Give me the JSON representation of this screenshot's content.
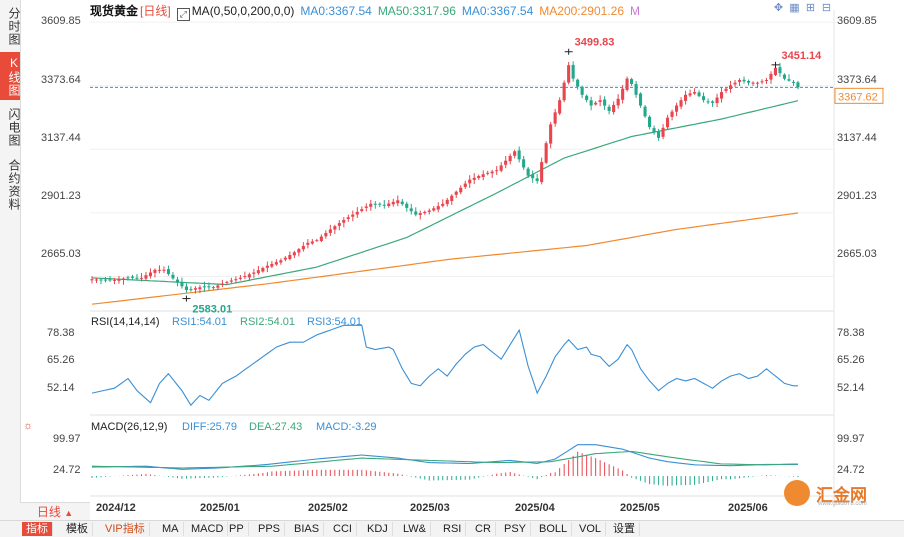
{
  "side_tabs": [
    {
      "label": "分时图",
      "active": false
    },
    {
      "label": "K线图",
      "active": true
    },
    {
      "label": "闪电图",
      "active": false
    },
    {
      "label": "合约资料",
      "active": false
    }
  ],
  "header": {
    "title": "现货黄金",
    "period": "[日线]",
    "ma_label": "MA(0,50,0,200,0,0)",
    "ma0_a": "MA0:3367.54",
    "ma50": "MA50:3317.96",
    "ma0_b": "MA0:3367.54",
    "ma200": "MA200:2901.26",
    "m": "M"
  },
  "colors": {
    "up": "#e8454e",
    "down": "#22a88a",
    "ma50": "#3aa87a",
    "ma200": "#f08a30",
    "rsi": "#3a8fd6",
    "diff": "#3a8fd6",
    "dea": "#3aa87a",
    "accent": "#e84b3a"
  },
  "price_axis": [
    "3609.85",
    "3373.64",
    "3137.44",
    "2901.23",
    "2665.03"
  ],
  "current_price": "3367.62",
  "annotations": {
    "high": "3499.83",
    "recent_high": "3451.14",
    "low": "2583.01"
  },
  "rsi": {
    "header": "RSI(14,14,14)",
    "rsi1": "RSI1:54.01",
    "rsi2": "RSI2:54.01",
    "rsi3": "RSI3:54.01",
    "axis": [
      "78.38",
      "65.26",
      "52.14"
    ]
  },
  "macd": {
    "header": "MACD(26,12,9)",
    "diff": "DIFF:25.79",
    "dea": "DEA:27.43",
    "macd": "MACD:-3.29",
    "axis": [
      "99.97",
      "24.72"
    ]
  },
  "x_axis": [
    "2024/12",
    "2025/01",
    "2025/02",
    "2025/03",
    "2025/04",
    "2025/05",
    "2025/06"
  ],
  "bottom_period": "日线",
  "bottom_tabs": [
    {
      "label": "指标",
      "active": true,
      "vip": false
    },
    {
      "label": "模板",
      "active": false,
      "vip": false
    },
    {
      "label": "VIP指标",
      "active": false,
      "vip": true
    },
    {
      "label": "MA",
      "active": false,
      "vip": false
    },
    {
      "label": "MACD",
      "active": false,
      "vip": false
    },
    {
      "label": "PP",
      "active": false,
      "vip": false
    },
    {
      "label": "PPS",
      "active": false,
      "vip": false
    },
    {
      "label": "BIAS",
      "active": false,
      "vip": false
    },
    {
      "label": "CCI",
      "active": false,
      "vip": false
    },
    {
      "label": "KDJ",
      "active": false,
      "vip": false
    },
    {
      "label": "LW&",
      "active": false,
      "vip": false
    },
    {
      "label": "RSI",
      "active": false,
      "vip": false
    },
    {
      "label": "CR",
      "active": false,
      "vip": false
    },
    {
      "label": "PSY",
      "active": false,
      "vip": false
    },
    {
      "label": "BOLL",
      "active": false,
      "vip": false
    },
    {
      "label": "VOL",
      "active": false,
      "vip": false
    },
    {
      "label": "设置",
      "active": false,
      "vip": false
    }
  ],
  "logo_text": "汇金网",
  "logo_url": "www.gold678.com",
  "chart_data": {
    "type": "candlestick",
    "title": "现货黄金",
    "ylim": [
      2548,
      3640
    ],
    "yticks": [
      3609.85,
      3373.64,
      3137.44,
      2901.23,
      2665.03
    ],
    "x_labels": [
      "2024/12",
      "2025/01",
      "2025/02",
      "2025/03",
      "2025/04",
      "2025/05",
      "2025/06"
    ],
    "anchors": [
      [
        0,
        2655
      ],
      [
        4,
        2650
      ],
      [
        8,
        2660
      ],
      [
        11,
        2660
      ],
      [
        14,
        2690
      ],
      [
        16,
        2690
      ],
      [
        19,
        2642
      ],
      [
        21,
        2615
      ],
      [
        24,
        2625
      ],
      [
        27,
        2625
      ],
      [
        30,
        2645
      ],
      [
        33,
        2660
      ],
      [
        36,
        2680
      ],
      [
        39,
        2705
      ],
      [
        42,
        2725
      ],
      [
        45,
        2755
      ],
      [
        48,
        2790
      ],
      [
        50,
        2800
      ],
      [
        53,
        2840
      ],
      [
        56,
        2875
      ],
      [
        59,
        2905
      ],
      [
        62,
        2935
      ],
      [
        65,
        2930
      ],
      [
        68,
        2948
      ],
      [
        70,
        2920
      ],
      [
        72,
        2895
      ],
      [
        75,
        2910
      ],
      [
        78,
        2935
      ],
      [
        81,
        2980
      ],
      [
        84,
        3025
      ],
      [
        87,
        3045
      ],
      [
        90,
        3060
      ],
      [
        94,
        3130
      ],
      [
        97,
        3040
      ],
      [
        99,
        3020
      ],
      [
        102,
        3230
      ],
      [
        104,
        3320
      ],
      [
        106,
        3450
      ],
      [
        107,
        3400
      ],
      [
        109,
        3340
      ],
      [
        111,
        3300
      ],
      [
        113,
        3320
      ],
      [
        115,
        3280
      ],
      [
        117,
        3325
      ],
      [
        119,
        3400
      ],
      [
        120,
        3380
      ],
      [
        122,
        3300
      ],
      [
        124,
        3220
      ],
      [
        126,
        3180
      ],
      [
        128,
        3255
      ],
      [
        130,
        3300
      ],
      [
        132,
        3340
      ],
      [
        134,
        3350
      ],
      [
        136,
        3320
      ],
      [
        138,
        3310
      ],
      [
        140,
        3350
      ],
      [
        142,
        3375
      ],
      [
        144,
        3395
      ],
      [
        146,
        3385
      ],
      [
        148,
        3385
      ],
      [
        150,
        3395
      ],
      [
        152,
        3440
      ],
      [
        154,
        3400
      ],
      [
        156,
        3385
      ],
      [
        157,
        3368
      ]
    ],
    "ma50_anchors": [
      [
        0,
        2660
      ],
      [
        30,
        2635
      ],
      [
        50,
        2700
      ],
      [
        70,
        2810
      ],
      [
        90,
        2975
      ],
      [
        105,
        3105
      ],
      [
        120,
        3185
      ],
      [
        140,
        3250
      ],
      [
        157,
        3318
      ]
    ],
    "ma200_anchors": [
      [
        0,
        2562
      ],
      [
        40,
        2640
      ],
      [
        80,
        2730
      ],
      [
        110,
        2780
      ],
      [
        130,
        2840
      ],
      [
        157,
        2901
      ]
    ],
    "rsi_ylim": [
      44,
      82
    ],
    "rsi_yticks": [
      78.38,
      65.26,
      52.14
    ],
    "rsi_anchors": [
      [
        0,
        51
      ],
      [
        5,
        53
      ],
      [
        8,
        57
      ],
      [
        10,
        52
      ],
      [
        13,
        47
      ],
      [
        15,
        55
      ],
      [
        17,
        59
      ],
      [
        20,
        52
      ],
      [
        22,
        46
      ],
      [
        24,
        50
      ],
      [
        26,
        48
      ],
      [
        29,
        55
      ],
      [
        32,
        58
      ],
      [
        35,
        62
      ],
      [
        38,
        66
      ],
      [
        41,
        70
      ],
      [
        44,
        72
      ],
      [
        47,
        72
      ],
      [
        50,
        75
      ],
      [
        53,
        77
      ],
      [
        56,
        79
      ],
      [
        58,
        79
      ],
      [
        60,
        79
      ],
      [
        61,
        70
      ],
      [
        63,
        69
      ],
      [
        66,
        70
      ],
      [
        67,
        69
      ],
      [
        69,
        61
      ],
      [
        71,
        55
      ],
      [
        73,
        54
      ],
      [
        75,
        58
      ],
      [
        77,
        61
      ],
      [
        79,
        58
      ],
      [
        81,
        63
      ],
      [
        83,
        67
      ],
      [
        85,
        70
      ],
      [
        87,
        71
      ],
      [
        89,
        68
      ],
      [
        91,
        65
      ],
      [
        93,
        71
      ],
      [
        95,
        77
      ],
      [
        97,
        62
      ],
      [
        99,
        51
      ],
      [
        101,
        58
      ],
      [
        103,
        66
      ],
      [
        105,
        71
      ],
      [
        106,
        73
      ],
      [
        108,
        69
      ],
      [
        110,
        70
      ],
      [
        111,
        67
      ],
      [
        113,
        66
      ],
      [
        115,
        62
      ],
      [
        117,
        65
      ],
      [
        119,
        71
      ],
      [
        120,
        69
      ],
      [
        122,
        61
      ],
      [
        124,
        56
      ],
      [
        126,
        52
      ],
      [
        128,
        55
      ],
      [
        130,
        57
      ],
      [
        132,
        56
      ],
      [
        134,
        57
      ],
      [
        136,
        55
      ],
      [
        138,
        53
      ],
      [
        140,
        56
      ],
      [
        142,
        58
      ],
      [
        144,
        59
      ],
      [
        146,
        57
      ],
      [
        148,
        58
      ],
      [
        150,
        61
      ],
      [
        152,
        58
      ],
      [
        154,
        55
      ],
      [
        156,
        54
      ],
      [
        157,
        54
      ]
    ],
    "macd_ylim": [
      -40,
      125
    ],
    "macd_yticks": [
      99.97,
      24.72
    ],
    "diff_anchors": [
      [
        0,
        20
      ],
      [
        12,
        22
      ],
      [
        20,
        15
      ],
      [
        28,
        18
      ],
      [
        38,
        25
      ],
      [
        50,
        38
      ],
      [
        60,
        47
      ],
      [
        68,
        40
      ],
      [
        75,
        30
      ],
      [
        84,
        28
      ],
      [
        93,
        35
      ],
      [
        99,
        28
      ],
      [
        103,
        38
      ],
      [
        108,
        70
      ],
      [
        112,
        70
      ],
      [
        118,
        60
      ],
      [
        124,
        40
      ],
      [
        128,
        32
      ],
      [
        134,
        25
      ],
      [
        142,
        23
      ],
      [
        150,
        26
      ],
      [
        157,
        26
      ]
    ],
    "dea_anchors": [
      [
        0,
        22
      ],
      [
        20,
        18
      ],
      [
        40,
        22
      ],
      [
        60,
        40
      ],
      [
        75,
        35
      ],
      [
        90,
        30
      ],
      [
        102,
        32
      ],
      [
        112,
        50
      ],
      [
        120,
        55
      ],
      [
        130,
        40
      ],
      [
        140,
        27
      ],
      [
        150,
        25
      ],
      [
        157,
        27
      ]
    ]
  }
}
